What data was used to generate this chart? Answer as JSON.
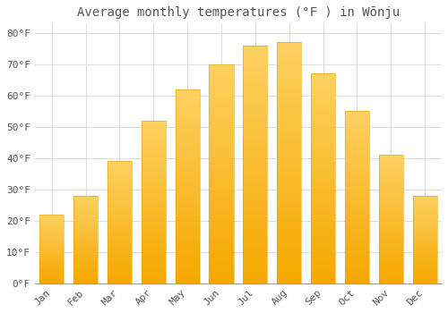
{
  "title": "Average monthly temperatures (°F ) in Wōnju",
  "months": [
    "Jan",
    "Feb",
    "Mar",
    "Apr",
    "May",
    "Jun",
    "Jul",
    "Aug",
    "Sep",
    "Oct",
    "Nov",
    "Dec"
  ],
  "values": [
    22,
    28,
    39,
    52,
    62,
    70,
    76,
    77,
    67,
    55,
    41,
    28
  ],
  "bar_color_bottom": "#F5A800",
  "bar_color_top": "#FDD060",
  "background_color": "#FFFFFF",
  "plot_bg_color": "#FFFFFF",
  "grid_color": "#DDDDDD",
  "ylim": [
    0,
    83
  ],
  "yticks": [
    0,
    10,
    20,
    30,
    40,
    50,
    60,
    70,
    80
  ],
  "ytick_labels": [
    "0°F",
    "10°F",
    "20°F",
    "30°F",
    "40°F",
    "50°F",
    "60°F",
    "70°F",
    "80°F"
  ],
  "title_fontsize": 10,
  "tick_fontsize": 8,
  "font_color": "#555555",
  "bar_width": 0.72
}
